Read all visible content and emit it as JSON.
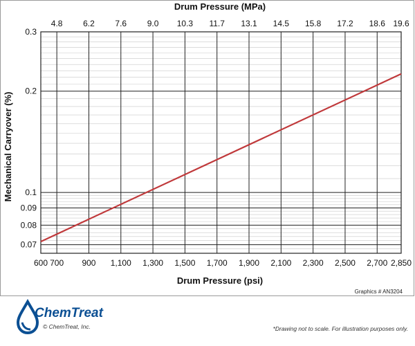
{
  "chart_data": {
    "type": "line",
    "xlabel": "Drum Pressure (psi)",
    "x2label": "Drum Pressure (MPa)",
    "ylabel": "Mechanical Carryover (%)",
    "x_ticks": [
      "600",
      "700",
      "900",
      "1,100",
      "1,300",
      "1,500",
      "1,700",
      "1,900",
      "2,100",
      "2,300",
      "2,500",
      "2,700",
      "2,850"
    ],
    "x_tick_values": [
      600,
      700,
      900,
      1100,
      1300,
      1500,
      1700,
      1900,
      2100,
      2300,
      2500,
      2700,
      2850
    ],
    "x2_ticks": [
      "4.8",
      "6.2",
      "7.6",
      "9.0",
      "10.3",
      "11.7",
      "13.1",
      "14.5",
      "15.8",
      "17.2",
      "18.6",
      "19.6"
    ],
    "x2_tick_values": [
      700,
      900,
      1100,
      1300,
      1500,
      1700,
      1900,
      2100,
      2300,
      2500,
      2700,
      2850
    ],
    "y_scale": "log",
    "ylim": [
      0.066,
      0.3
    ],
    "xlim": [
      600,
      2850
    ],
    "y_ticks": [
      "0.07",
      "0.08",
      "0.09",
      "0.1",
      "0.2",
      "0.3"
    ],
    "y_tick_values": [
      0.07,
      0.08,
      0.09,
      0.1,
      0.2,
      0.3
    ],
    "grid": true,
    "series": [
      {
        "color": "#c0393b",
        "x": [
          600,
          2850
        ],
        "y": [
          0.0715,
          0.225
        ]
      }
    ]
  },
  "footer": {
    "graphics_id": "Graphics # AN3204",
    "brand": "ChemTreat",
    "copyright": "© ChemTreat, Inc.",
    "disclaimer": "*Drawing not to scale. For illustration purposes only."
  }
}
